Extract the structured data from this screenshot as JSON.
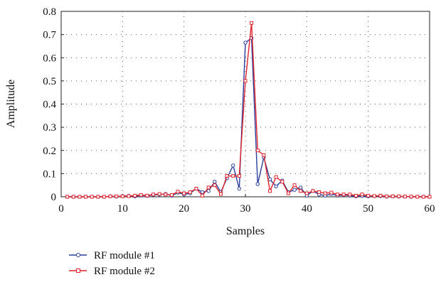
{
  "chart_data": {
    "type": "line",
    "title": "",
    "xlabel": "Samples",
    "ylabel": "Amplitude",
    "xlim": [
      0,
      60
    ],
    "ylim": [
      0,
      0.8
    ],
    "xticks": [
      "0",
      "10",
      "20",
      "30",
      "40",
      "50",
      "60"
    ],
    "yticks": [
      "0",
      "0.1",
      "0.2",
      "0.3",
      "0.4",
      "0.5",
      "0.6",
      "0.7",
      "0.8"
    ],
    "grid": true,
    "legend_position": "below",
    "x": [
      1,
      2,
      3,
      4,
      5,
      6,
      7,
      8,
      9,
      10,
      11,
      12,
      13,
      14,
      15,
      16,
      17,
      18,
      19,
      20,
      21,
      22,
      23,
      24,
      25,
      26,
      27,
      28,
      29,
      30,
      31,
      32,
      33,
      34,
      35,
      36,
      37,
      38,
      39,
      40,
      41,
      42,
      43,
      44,
      45,
      46,
      47,
      48,
      49,
      50,
      51,
      52,
      53,
      54,
      55,
      56,
      57,
      58,
      59,
      60
    ],
    "series": [
      {
        "name": "RF module #1",
        "color": "#2b3f9e",
        "marker": "circle",
        "values": [
          0,
          0,
          0,
          0,
          0,
          0,
          0,
          0.002,
          0.001,
          0.003,
          0.004,
          0.002,
          0.006,
          0.004,
          0.008,
          0.01,
          0.012,
          0.005,
          0.018,
          0.01,
          0.015,
          0.035,
          0.02,
          0.025,
          0.065,
          0.02,
          0.08,
          0.135,
          0.035,
          0.665,
          0.685,
          0.055,
          0.17,
          0.075,
          0.045,
          0.07,
          0.02,
          0.03,
          0.04,
          0.005,
          0.025,
          0.01,
          0.005,
          0.012,
          0.005,
          0.008,
          0.005,
          0.002,
          0.004,
          0.002,
          0.003,
          0.003,
          0.001,
          0.002,
          0.001,
          0.001,
          0,
          0,
          0,
          0
        ]
      },
      {
        "name": "RF module #2",
        "color": "#e0242c",
        "marker": "square",
        "values": [
          0,
          0,
          0,
          0,
          0,
          0,
          0,
          0.002,
          0.002,
          0.002,
          0.003,
          0.005,
          0.008,
          0.005,
          0.01,
          0.012,
          0.01,
          0.008,
          0.022,
          0.015,
          0.02,
          0.035,
          0.005,
          0.04,
          0.05,
          0.012,
          0.09,
          0.09,
          0.09,
          0.5,
          0.75,
          0.2,
          0.18,
          0.025,
          0.085,
          0.065,
          0.015,
          0.05,
          0.025,
          0.015,
          0.025,
          0.02,
          0.015,
          0.018,
          0.01,
          0.01,
          0.01,
          0.005,
          0.01,
          0.005,
          0.003,
          0.005,
          0.002,
          0.002,
          0.002,
          0.001,
          0.001,
          0,
          0,
          0
        ]
      }
    ]
  }
}
